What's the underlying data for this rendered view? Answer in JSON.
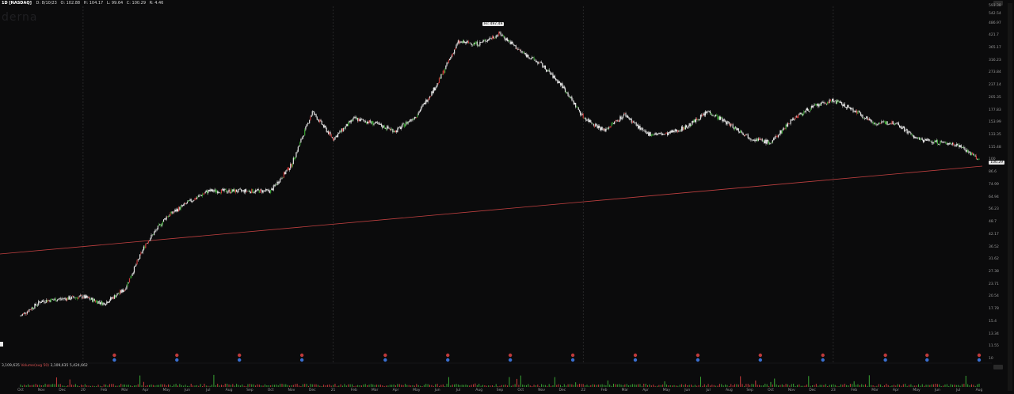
{
  "header": {
    "symbol": "1D [NASDAQ]",
    "date": "D: 8/10/23",
    "open": "O: 102.88",
    "high": "H: 104.17",
    "low": "L: 99.64",
    "close": "C: 100.29",
    "change": "R: 4.46"
  },
  "ghost_name": "derna",
  "high_label": "Hi: 497.49",
  "last_price": "100.29",
  "y_axis": [
    "593.38",
    "542.54",
    "486.97",
    "421.7",
    "365.17",
    "316.23",
    "273.84",
    "237.14",
    "205.35",
    "177.83",
    "153.99",
    "133.35",
    "115.48",
    "100",
    "86.6",
    "74.99",
    "64.94",
    "56.23",
    "48.7",
    "42.17",
    "36.52",
    "31.62",
    "27.38",
    "23.71",
    "20.54",
    "17.78",
    "15.4",
    "13.34",
    "11.55",
    "10"
  ],
  "x_axis": [
    "Oct",
    "Nov",
    "Dec",
    "20",
    "Feb",
    "Mar",
    "Apr",
    "May",
    "Jun",
    "Jul",
    "Aug",
    "Sep",
    "Oct",
    "Nov",
    "Dec",
    "21",
    "Feb",
    "Mar",
    "Apr",
    "May",
    "Jun",
    "Jul",
    "Aug",
    "Sep",
    "Oct",
    "Nov",
    "Dec",
    "22",
    "Feb",
    "Mar",
    "Apr",
    "May",
    "Jun",
    "Jul",
    "Aug",
    "Sep",
    "Oct",
    "Nov",
    "Dec",
    "23",
    "Feb",
    "Mar",
    "Apr",
    "May",
    "Jun",
    "Jul",
    "Aug"
  ],
  "volume": {
    "label": "Volume(avg 50)",
    "value1": "3,109,635",
    "value2": "3,109,635",
    "value3": "5,424,662"
  },
  "colors": {
    "background": "#0b0b0c",
    "up_candle": "#3aa534",
    "down_candle": "#c83b3b",
    "neutral_candle": "#e6e6e6",
    "trendline": "#c04040",
    "grid_separator": "#3a3a3a"
  },
  "chart_data": {
    "type": "candlestick",
    "scale": "log",
    "ylim": [
      10,
      593.38
    ],
    "x": [
      "2019-10",
      "2019-11",
      "2019-12",
      "2020-01",
      "2020-02",
      "2020-03",
      "2020-04",
      "2020-05",
      "2020-06",
      "2020-07",
      "2020-08",
      "2020-09",
      "2020-10",
      "2020-11",
      "2020-12",
      "2021-01",
      "2021-02",
      "2021-03",
      "2021-04",
      "2021-05",
      "2021-06",
      "2021-07",
      "2021-08",
      "2021-09",
      "2021-10",
      "2021-11",
      "2021-12",
      "2022-01",
      "2022-02",
      "2022-03",
      "2022-04",
      "2022-05",
      "2022-06",
      "2022-07",
      "2022-08",
      "2022-09",
      "2022-10",
      "2022-11",
      "2022-12",
      "2023-01",
      "2023-02",
      "2023-03",
      "2023-04",
      "2023-05",
      "2023-06",
      "2023-07",
      "2023-08"
    ],
    "close": [
      16.5,
      19.6,
      20.1,
      20.6,
      19.0,
      22.5,
      38.0,
      52.0,
      61.0,
      70.0,
      70.0,
      70.0,
      70.0,
      95.0,
      175.0,
      128.0,
      162.0,
      153.0,
      140.0,
      168.0,
      242.0,
      392.0,
      385.0,
      433.0,
      352.0,
      302.0,
      236.0,
      165.0,
      141.0,
      170.0,
      136.0,
      135.0,
      148.0,
      176.0,
      152.0,
      130.0,
      122.0,
      160.0,
      185.0,
      200.0,
      178.0,
      153.0,
      155.0,
      128.0,
      123.0,
      120.0,
      100.29
    ],
    "high_annotation": 497.49
  }
}
